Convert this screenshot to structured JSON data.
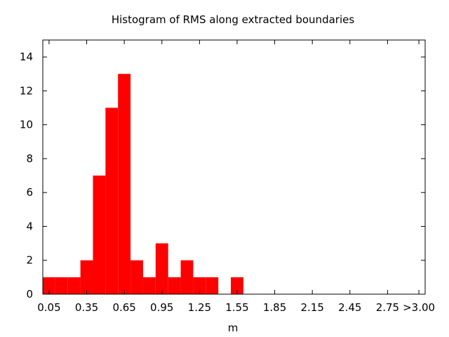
{
  "chart_data": {
    "type": "bar",
    "title": "Histogram of RMS along extracted boundaries",
    "xlabel": "m",
    "ylabel": "",
    "bin_width": 0.1,
    "bins": [
      {
        "x": 0.05,
        "count": 1
      },
      {
        "x": 0.15,
        "count": 1
      },
      {
        "x": 0.25,
        "count": 1
      },
      {
        "x": 0.35,
        "count": 2
      },
      {
        "x": 0.45,
        "count": 7
      },
      {
        "x": 0.55,
        "count": 11
      },
      {
        "x": 0.65,
        "count": 13
      },
      {
        "x": 0.75,
        "count": 2
      },
      {
        "x": 0.85,
        "count": 1
      },
      {
        "x": 0.95,
        "count": 3
      },
      {
        "x": 1.05,
        "count": 1
      },
      {
        "x": 1.15,
        "count": 2
      },
      {
        "x": 1.25,
        "count": 1
      },
      {
        "x": 1.35,
        "count": 1
      },
      {
        "x": 1.55,
        "count": 1
      }
    ],
    "xlim": [
      0.0,
      3.05
    ],
    "ylim": [
      0,
      15
    ],
    "x_ticks": [
      0.05,
      0.35,
      0.65,
      0.95,
      1.25,
      1.55,
      1.85,
      2.15,
      2.45,
      2.75,
      3.0
    ],
    "x_tick_labels": [
      "0.05",
      "0.35",
      "0.65",
      "0.95",
      "1.25",
      "1.55",
      "1.85",
      "2.15",
      "2.45",
      "2.75",
      ">3.00"
    ],
    "y_ticks": [
      0,
      2,
      4,
      6,
      8,
      10,
      12,
      14
    ],
    "y_tick_labels": [
      "0",
      "2",
      "4",
      "6",
      "8",
      "10",
      "12",
      "14"
    ],
    "bar_color": "#ff0000",
    "grid": false,
    "legend": false
  }
}
